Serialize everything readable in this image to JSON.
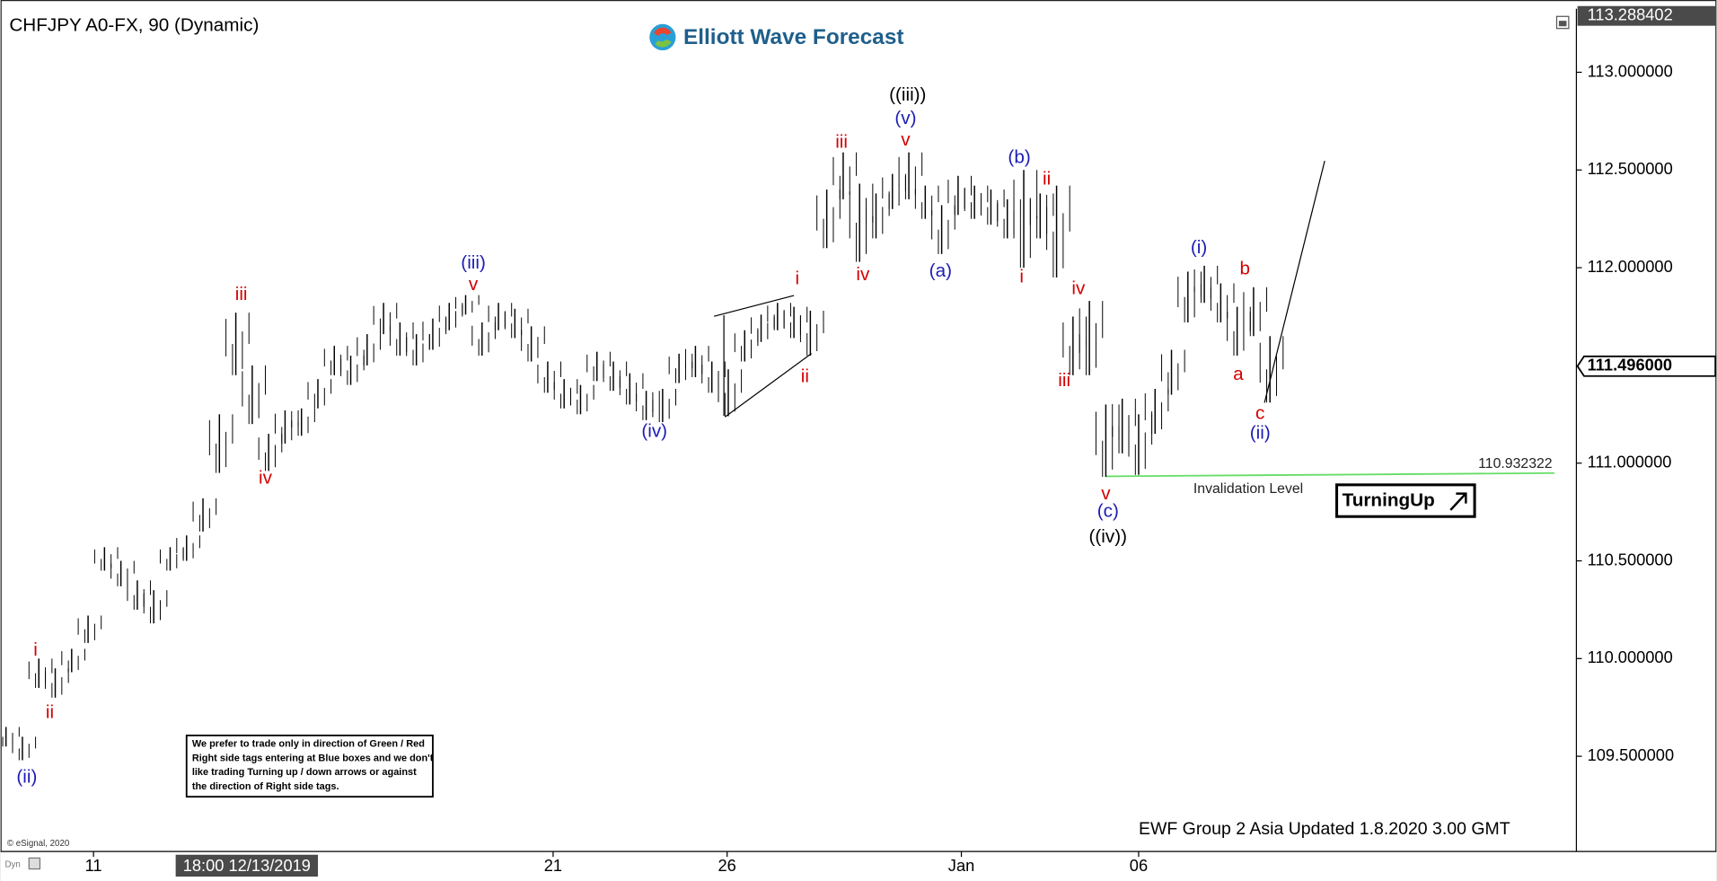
{
  "chart_data": {
    "type": "ohlc",
    "title": "CHFJPY A0-FX, 90 (Dynamic)",
    "logo": "Elliott Wave Forecast",
    "footer": "EWF Group 2  Asia  Updated 1.8.2020 3.00 GMT",
    "copyright": "© eSignal, 2020",
    "corner_label": "Dyn",
    "turning_label": "TurningUp",
    "disclaimer": [
      "We prefer to trade only in direction of Green / Red",
      "Right side tags entering at Blue boxes and we don't",
      "like trading Turning up / down arrows or against",
      "the direction of Right side tags."
    ],
    "bar_color": "#000000",
    "high": [
      109.65,
      109.6,
      110.0,
      109.95,
      110.05,
      110.22,
      110.57,
      110.5,
      110.4,
      110.35,
      110.57,
      110.63,
      110.82,
      111.25,
      111.77,
      111.5,
      111.15,
      111.27,
      111.28,
      111.43,
      111.6,
      111.55,
      111.66,
      111.82,
      111.72,
      111.66,
      111.74,
      111.82,
      111.86,
      111.72,
      111.82,
      111.79,
      111.7,
      111.52,
      111.43,
      111.4,
      111.57,
      111.52,
      111.46,
      111.37,
      111.38,
      111.56,
      111.6,
      111.52,
      111.48,
      111.68,
      111.76,
      111.82,
      111.8,
      111.78,
      112.4,
      112.59,
      112.43,
      112.38,
      112.48,
      112.59,
      112.42,
      112.32,
      112.47,
      112.42,
      112.4,
      112.35,
      112.5,
      112.38,
      112.42,
      111.75,
      111.83,
      111.3,
      111.33,
      111.25,
      111.38,
      111.58,
      111.98,
      112.01,
      111.92,
      111.8,
      111.9,
      111.65
    ],
    "low": [
      109.55,
      109.48,
      109.85,
      109.8,
      109.93,
      110.08,
      110.45,
      110.37,
      110.25,
      110.18,
      110.45,
      110.5,
      110.65,
      110.95,
      111.45,
      111.2,
      110.96,
      111.1,
      111.14,
      111.28,
      111.45,
      111.4,
      111.5,
      111.66,
      111.55,
      111.5,
      111.58,
      111.68,
      111.76,
      111.55,
      111.68,
      111.64,
      111.52,
      111.36,
      111.28,
      111.25,
      111.42,
      111.37,
      111.3,
      111.22,
      111.21,
      111.41,
      111.44,
      111.36,
      111.24,
      111.52,
      111.62,
      111.68,
      111.64,
      111.55,
      112.1,
      112.35,
      112.03,
      112.15,
      112.3,
      112.35,
      112.25,
      112.07,
      112.27,
      112.25,
      112.22,
      112.15,
      112.0,
      112.15,
      111.95,
      111.45,
      111.45,
      110.93,
      111.05,
      110.94,
      111.15,
      111.35,
      111.72,
      111.82,
      111.72,
      111.55,
      111.65,
      111.31
    ],
    "ylim": [
      109.013,
      113.325
    ],
    "yticks": [
      {
        "value": 113.0,
        "label": "113.000000"
      },
      {
        "value": 112.5,
        "label": "112.500000"
      },
      {
        "value": 112.0,
        "label": "112.000000"
      },
      {
        "value": 111.0,
        "label": "111.000000"
      },
      {
        "value": 110.5,
        "label": "110.500000"
      },
      {
        "value": 110.0,
        "label": "110.000000"
      },
      {
        "value": 109.5,
        "label": "109.500000"
      }
    ],
    "top_price": {
      "value": 113.288402,
      "label": "113.288402"
    },
    "last_price": {
      "value": 111.496,
      "label": "111.496000"
    },
    "xticks": [
      {
        "value": 5.33,
        "label": "11"
      },
      {
        "value": 33.33,
        "label": "21"
      },
      {
        "value": 43.93,
        "label": "26"
      },
      {
        "value": 58.2,
        "label": "Jan"
      },
      {
        "value": 69,
        "label": "06"
      }
    ],
    "cursor_time": {
      "value": 14.67,
      "label": "18:00 12/13/2019"
    },
    "invalidation": {
      "value": 110.932322,
      "name": "Invalidation Level",
      "color": "#66dd66"
    },
    "annotations": [
      {
        "text": "(ii)",
        "x": 1.27,
        "y": 109.39,
        "color": "#1c1cb4"
      },
      {
        "text": "i",
        "x": 1.8,
        "y": 110.04,
        "color": "#d40000"
      },
      {
        "text": "ii",
        "x": 2.67,
        "y": 109.72,
        "color": "#d40000"
      },
      {
        "text": "iii",
        "x": 14.33,
        "y": 111.86,
        "color": "#d40000"
      },
      {
        "text": "iv",
        "x": 15.8,
        "y": 110.92,
        "color": "#d40000"
      },
      {
        "text": "(iii)",
        "x": 28.47,
        "y": 112.02,
        "color": "#1c1cb4"
      },
      {
        "text": "v",
        "x": 28.47,
        "y": 111.91,
        "color": "#d40000"
      },
      {
        "text": "(iv)",
        "x": 39.5,
        "y": 111.16,
        "color": "#1c1cb4"
      },
      {
        "text": "i",
        "x": 48.2,
        "y": 111.94,
        "color": "#d40000"
      },
      {
        "text": "ii",
        "x": 48.67,
        "y": 111.44,
        "color": "#d40000"
      },
      {
        "text": "iii",
        "x": 50.9,
        "y": 112.64,
        "color": "#d40000"
      },
      {
        "text": "iv",
        "x": 52.2,
        "y": 111.96,
        "color": "#d40000"
      },
      {
        "text": "((iii))",
        "x": 54.93,
        "y": 112.88,
        "color": "#000000"
      },
      {
        "text": "(v)",
        "x": 54.8,
        "y": 112.76,
        "color": "#1c1cb4"
      },
      {
        "text": "v",
        "x": 54.8,
        "y": 112.65,
        "color": "#d40000"
      },
      {
        "text": "(a)",
        "x": 56.93,
        "y": 111.98,
        "color": "#1c1cb4"
      },
      {
        "text": "(b)",
        "x": 61.73,
        "y": 112.56,
        "color": "#1c1cb4"
      },
      {
        "text": "ii",
        "x": 63.4,
        "y": 112.45,
        "color": "#d40000"
      },
      {
        "text": "i",
        "x": 61.87,
        "y": 111.95,
        "color": "#d40000"
      },
      {
        "text": "iv",
        "x": 65.33,
        "y": 111.89,
        "color": "#d40000"
      },
      {
        "text": "iii",
        "x": 64.47,
        "y": 111.42,
        "color": "#d40000"
      },
      {
        "text": "v",
        "x": 67.0,
        "y": 110.84,
        "color": "#d40000"
      },
      {
        "text": "(c)",
        "x": 67.13,
        "y": 110.75,
        "color": "#1c1cb4"
      },
      {
        "text": "((iv))",
        "x": 67.13,
        "y": 110.62,
        "color": "#000000"
      },
      {
        "text": "(i)",
        "x": 72.67,
        "y": 112.1,
        "color": "#1c1cb4"
      },
      {
        "text": "b",
        "x": 75.47,
        "y": 111.99,
        "color": "#d40000"
      },
      {
        "text": "a",
        "x": 75.07,
        "y": 111.45,
        "color": "#d40000"
      },
      {
        "text": "c",
        "x": 76.4,
        "y": 111.25,
        "color": "#d40000"
      },
      {
        "text": "(ii)",
        "x": 76.4,
        "y": 111.15,
        "color": "#1c1cb4"
      }
    ]
  }
}
